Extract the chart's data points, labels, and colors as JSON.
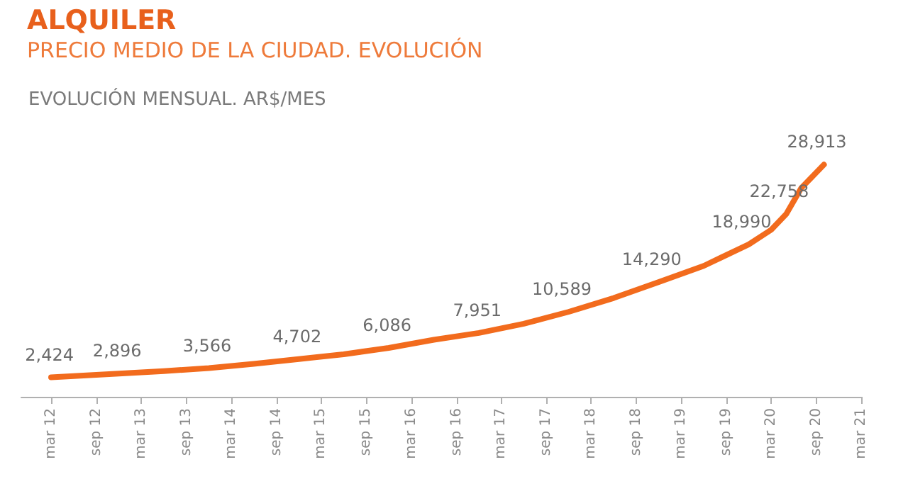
{
  "chart_data": {
    "type": "line",
    "title": "ALQUILER",
    "subtitle": "PRECIO MEDIO DE LA CIUDAD. EVOLUCIÓN",
    "annotations": [
      "EVOLUCIÓN MENSUAL. AR$/MES"
    ],
    "x": [
      "2012-03",
      "2012-12",
      "2013-06",
      "2013-12",
      "2014-06",
      "2014-12",
      "2015-06",
      "2015-12",
      "2016-06",
      "2016-12",
      "2017-06",
      "2017-12",
      "2018-06",
      "2018-12",
      "2019-06",
      "2019-12",
      "2020-03",
      "2020-05",
      "2020-07",
      "2020-10"
    ],
    "series": [
      {
        "color": "#f26b1d",
        "values": [
          2424,
          2896,
          3200,
          3566,
          4100,
          4702,
          5300,
          6086,
          7100,
          7951,
          9100,
          10589,
          12300,
          14290,
          16300,
          18990,
          20800,
          22758,
          26000,
          28913
        ],
        "value_labels": [
          "2,424",
          "2,896",
          null,
          "3,566",
          null,
          "4,702",
          null,
          "6,086",
          null,
          "7,951",
          null,
          "10,589",
          null,
          "14,290",
          null,
          "18,990",
          null,
          "22,758",
          null,
          "28,913"
        ]
      }
    ],
    "xlim": [
      "2011-11",
      "2021-03"
    ],
    "xticks": [
      {
        "value": "2012-03",
        "label": "mar 12"
      },
      {
        "value": "2012-09",
        "label": "sep 12"
      },
      {
        "value": "2013-03",
        "label": "mar 13"
      },
      {
        "value": "2013-09",
        "label": "sep 13"
      },
      {
        "value": "2014-03",
        "label": "mar 14"
      },
      {
        "value": "2014-09",
        "label": "sep 14"
      },
      {
        "value": "2015-03",
        "label": "mar 15"
      },
      {
        "value": "2015-09",
        "label": "sep 15"
      },
      {
        "value": "2016-03",
        "label": "mar 16"
      },
      {
        "value": "2016-09",
        "label": "sep 16"
      },
      {
        "value": "2017-03",
        "label": "mar 17"
      },
      {
        "value": "2017-09",
        "label": "sep 17"
      },
      {
        "value": "2018-03",
        "label": "mar 18"
      },
      {
        "value": "2018-09",
        "label": "sep 18"
      },
      {
        "value": "2019-03",
        "label": "mar 19"
      },
      {
        "value": "2019-09",
        "label": "sep 19"
      },
      {
        "value": "2020-03",
        "label": "mar 20"
      },
      {
        "value": "2020-09",
        "label": "sep 20"
      },
      {
        "value": "2021-03",
        "label": "mar 21"
      }
    ],
    "tick_labels": "x",
    "grid": false,
    "marker": "none",
    "line_style": "solid"
  }
}
